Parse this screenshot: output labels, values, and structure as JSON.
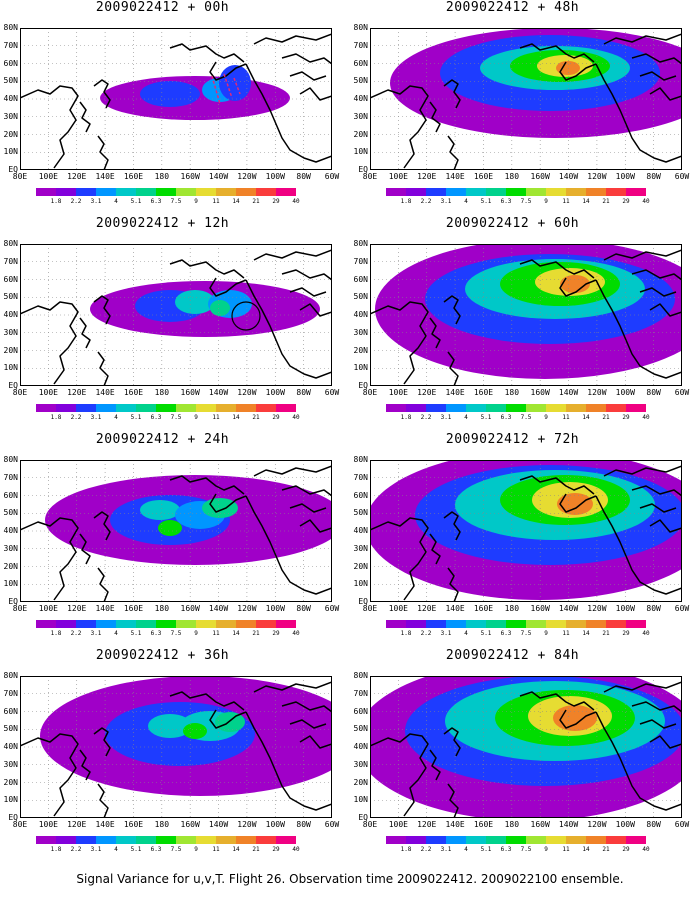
{
  "caption": "Signal Variance for u,v,T. Flight 26. Observation time 2009022412. 2009022100 ensemble.",
  "legend_labels": [
    "1.8",
    "2.2",
    "3.1",
    "4",
    "5.1",
    "6.3",
    "7.5",
    "9",
    "11",
    "14",
    "21",
    "29",
    "40"
  ],
  "legend_colors": [
    "#a000c8",
    "#8200dc",
    "#1e3cff",
    "#0096ff",
    "#00c8c8",
    "#00d28c",
    "#00dc00",
    "#a0e632",
    "#e6dc32",
    "#e6af2d",
    "#f08228",
    "#fa3c3c",
    "#f00082"
  ],
  "x_ticks": [
    "80E",
    "100E",
    "120E",
    "140E",
    "160E",
    "180",
    "160W",
    "140W",
    "120W",
    "100W",
    "80W",
    "60W"
  ],
  "y_ticks": [
    "80N",
    "70N",
    "60N",
    "50N",
    "40N",
    "30N",
    "20N",
    "10N",
    "EQ"
  ],
  "panels": [
    {
      "title": "2009022412 + 00h",
      "lead": 0
    },
    {
      "title": "2009022412 + 48h",
      "lead": 48
    },
    {
      "title": "2009022412 + 12h",
      "lead": 12
    },
    {
      "title": "2009022412 + 60h",
      "lead": 60
    },
    {
      "title": "2009022412 + 24h",
      "lead": 24
    },
    {
      "title": "2009022412 + 72h",
      "lead": 72
    },
    {
      "title": "2009022412 + 36h",
      "lead": 36
    },
    {
      "title": "2009022412 + 84h",
      "lead": 84
    }
  ],
  "chart_data": {
    "type": "heatmap",
    "colorbar_levels": [
      1.8,
      2.2,
      3.1,
      4,
      5.1,
      6.3,
      7.5,
      9,
      11,
      14,
      21,
      29,
      40
    ],
    "x_range": [
      "80E",
      "60W"
    ],
    "y_range": [
      "EQ",
      "80N"
    ],
    "grid": true
  }
}
